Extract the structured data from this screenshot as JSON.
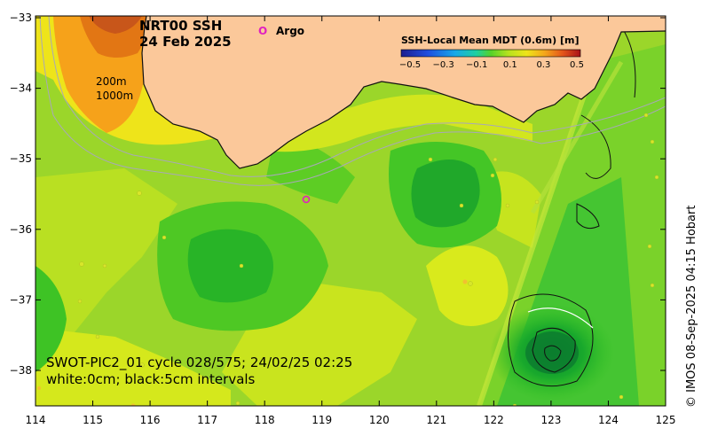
{
  "title": {
    "line1": "NRT00 SSH",
    "line2": "24 Feb 2025"
  },
  "argo_legend": {
    "symbol": "O",
    "label": "Argo",
    "color": "#e020c0"
  },
  "colorbar": {
    "label": "SSH-Local Mean MDT (0.6m) [m]",
    "ticks": [
      "−0.5",
      "−0.3",
      "−0.1",
      "0.1",
      "0.3",
      "0.5"
    ]
  },
  "isobaths": {
    "shallow": "200m",
    "deep": "1000m"
  },
  "swot": {
    "line1": "SWOT-PIC2_01 cycle 028/575; 24/02/25 02:25",
    "line2": "white:0cm; black:5cm intervals"
  },
  "credit": "© IMOS 08-Sep-2025 04:15 Hobart",
  "axes": {
    "x_ticks": [
      "114",
      "115",
      "116",
      "117",
      "118",
      "119",
      "120",
      "121",
      "122",
      "123",
      "124",
      "125"
    ],
    "y_ticks": [
      "−33",
      "−34",
      "−35",
      "−36",
      "−37",
      "−38"
    ]
  },
  "colors": {
    "land": "#fbc89a",
    "ocean_base": "#9bd62a",
    "low": "#33c51f",
    "high": "#d9ea1c",
    "shelf": "#f6a21a",
    "shelf_deep": "#e27614",
    "argo": "#e020c0"
  }
}
